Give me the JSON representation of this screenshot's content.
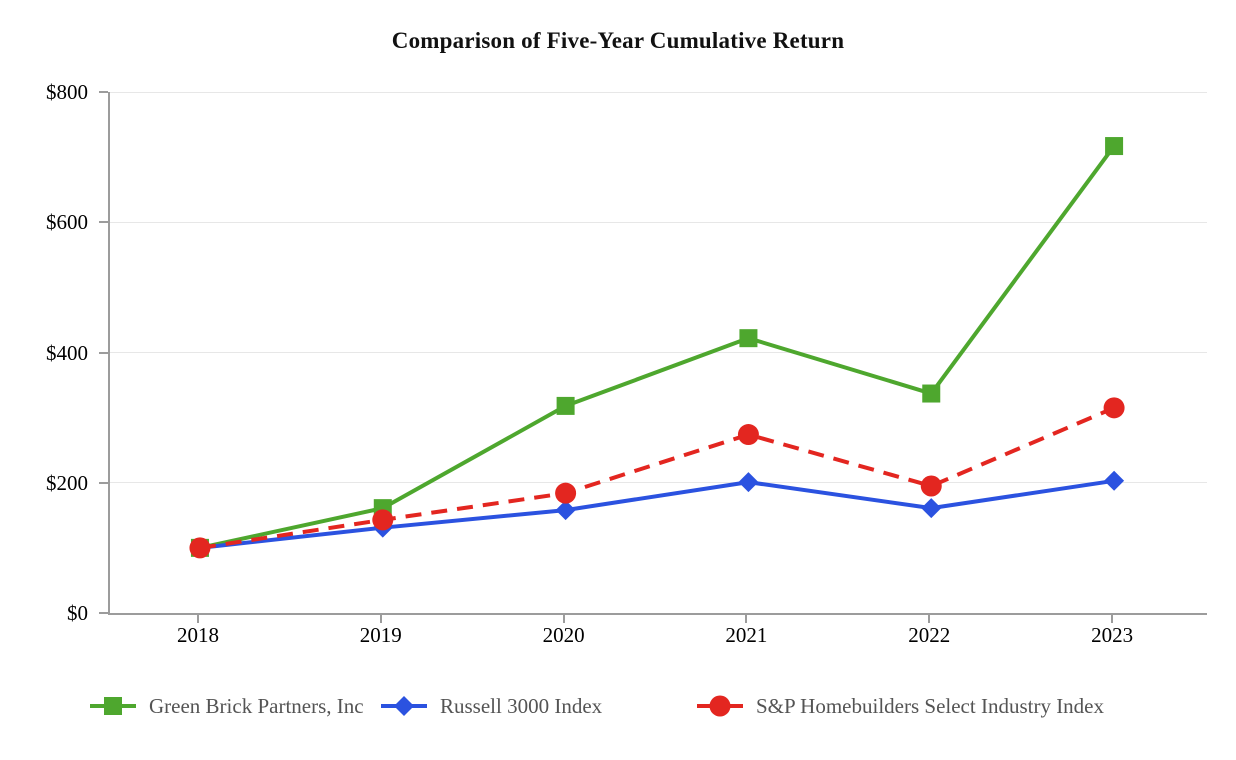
{
  "title": "Comparison of Five-Year Cumulative Return",
  "chart_data": {
    "type": "line",
    "title": "Comparison of Five-Year Cumulative Return",
    "xlabel": "",
    "ylabel": "",
    "categories": [
      "2018",
      "2019",
      "2020",
      "2021",
      "2022",
      "2023"
    ],
    "y_ticks": [
      0,
      200,
      400,
      600,
      800
    ],
    "y_tick_labels": [
      "$0",
      "$200",
      "$400",
      "$600",
      "$800"
    ],
    "ylim": [
      0,
      800
    ],
    "grid": true,
    "legend_position": "bottom",
    "currency_prefix": "$",
    "series": [
      {
        "name": "Green Brick Partners, Inc",
        "color": "#4ea72e",
        "marker": "square",
        "line_style": "solid",
        "values": [
          100,
          161,
          318,
          422,
          337,
          717
        ]
      },
      {
        "name": "Russell 3000 Index",
        "color": "#2b52e0",
        "marker": "diamond",
        "line_style": "solid",
        "values": [
          100,
          131,
          158,
          201,
          161,
          203
        ]
      },
      {
        "name": "S&P Homebuilders Select Industry Index",
        "color": "#e32620",
        "marker": "circle",
        "line_style": "dashed",
        "values": [
          100,
          143,
          184,
          274,
          195,
          315
        ]
      }
    ],
    "colors": {
      "axis": "#9c9c9c",
      "gridline": "#e7e7e7",
      "tick_label": "#000000",
      "legend_text": "#545454",
      "title": "#111111"
    }
  }
}
